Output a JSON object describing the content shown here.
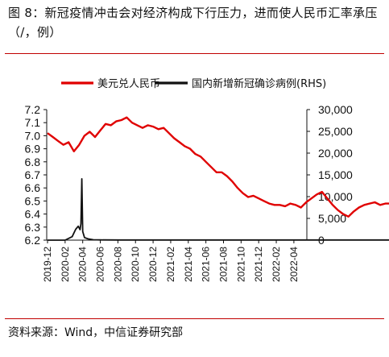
{
  "title": "图 8：新冠疫情冲击会对经济构成下行压力，进而使人民币汇率承压（/，例）",
  "source": "资料来源：Wind，中信证券研究部",
  "chart_data": {
    "type": "line",
    "title": "图 8：新冠疫情冲击会对经济构成下行压力，进而使人民币汇率承压（/，例）",
    "x_labels": [
      "2019-12",
      "2020-02",
      "2020-04",
      "2020-06",
      "2020-08",
      "2020-10",
      "2020-12",
      "2021-02",
      "2021-04",
      "2021-06",
      "2021-08",
      "2021-10",
      "2021-12",
      "2022-02",
      "2022-04"
    ],
    "y_left": {
      "min": 6.2,
      "max": 7.2,
      "ticks": [
        6.2,
        6.3,
        6.4,
        6.5,
        6.6,
        6.7,
        6.8,
        6.9,
        7.0,
        7.1,
        7.2
      ]
    },
    "y_right": {
      "label": "RHS",
      "min": 0,
      "max": 30000,
      "ticks": [
        "0",
        "5,000",
        "10,000",
        "15,000",
        "20,000",
        "25,000",
        "30,000"
      ],
      "tick_values": [
        0,
        5000,
        10000,
        15000,
        20000,
        25000,
        30000
      ]
    },
    "legend_position": "top",
    "series": [
      {
        "name": "美元兑人民币",
        "axis": "left",
        "color": "#e00000",
        "x": [
          0,
          0.3,
          0.6,
          0.9,
          1.2,
          1.5,
          1.8,
          2.1,
          2.4,
          2.7,
          3.0,
          3.3,
          3.6,
          3.9,
          4.2,
          4.5,
          4.8,
          5.1,
          5.4,
          5.7,
          6.0,
          6.3,
          6.6,
          6.9,
          7.2,
          7.5,
          7.8,
          8.1,
          8.4,
          8.7,
          9.0,
          9.3,
          9.6,
          9.9,
          10.2,
          10.5,
          10.8,
          11.1,
          11.4,
          11.7,
          12.0,
          12.3,
          12.6,
          12.9,
          13.2,
          13.5,
          13.8,
          14.1,
          14.4,
          14.7,
          15.0,
          15.3,
          15.6,
          15.9,
          16.2,
          16.5,
          16.8,
          17.1,
          17.4,
          17.7,
          18.0,
          18.3,
          18.6,
          18.9,
          19.2,
          19.5,
          19.8,
          20.1,
          20.4,
          20.7,
          21.0,
          21.3,
          21.6,
          21.9,
          22.2,
          22.5,
          22.8,
          23.1,
          23.4,
          23.7,
          24.0,
          24.3,
          24.6,
          24.9,
          25.2,
          25.5,
          25.8,
          26.1,
          26.4,
          26.7,
          27.0,
          27.3,
          27.6,
          27.9,
          28.2,
          28.6
        ],
        "values": [
          7.02,
          6.99,
          6.96,
          6.93,
          6.95,
          6.88,
          6.93,
          7.0,
          7.03,
          6.99,
          7.04,
          7.09,
          7.08,
          7.11,
          7.12,
          7.14,
          7.1,
          7.08,
          7.06,
          7.08,
          7.07,
          7.05,
          7.06,
          7.02,
          6.98,
          6.95,
          6.92,
          6.9,
          6.86,
          6.84,
          6.8,
          6.76,
          6.72,
          6.72,
          6.69,
          6.65,
          6.6,
          6.56,
          6.53,
          6.54,
          6.52,
          6.5,
          6.48,
          6.47,
          6.47,
          6.46,
          6.48,
          6.47,
          6.45,
          6.49,
          6.52,
          6.55,
          6.57,
          6.52,
          6.47,
          6.43,
          6.4,
          6.38,
          6.42,
          6.45,
          6.47,
          6.48,
          6.49,
          6.47,
          6.48,
          6.48,
          6.46,
          6.43,
          6.42,
          6.41,
          6.4,
          6.4,
          6.39,
          6.38,
          6.37,
          6.36,
          6.35,
          6.35,
          6.34,
          6.36,
          6.35,
          6.34,
          6.33,
          6.32,
          6.32,
          6.32,
          6.31,
          6.32,
          6.34,
          6.33,
          6.35,
          6.36,
          6.35,
          6.34,
          6.35,
          6.35
        ]
      },
      {
        "name": "国内新增新冠确诊病例(RHS)",
        "axis": "right",
        "color": "#111111",
        "x": [
          0,
          1.0,
          1.4,
          1.6,
          1.75,
          1.85,
          1.9,
          1.95,
          2.0,
          2.1,
          2.3,
          2.6,
          3.0,
          4,
          6,
          8,
          10,
          12,
          14,
          16,
          18,
          20,
          22,
          24,
          25,
          25.5,
          26,
          26.5,
          27,
          27.3,
          27.6,
          27.9,
          28.1,
          28.3,
          28.6
        ],
        "values": [
          0,
          0,
          800,
          2500,
          3200,
          2400,
          3800,
          14100,
          2000,
          600,
          300,
          100,
          50,
          30,
          30,
          30,
          30,
          30,
          40,
          30,
          40,
          30,
          30,
          40,
          60,
          100,
          200,
          400,
          900,
          1500,
          2700,
          2200,
          1800,
          2900,
          5100
        ]
      }
    ]
  }
}
